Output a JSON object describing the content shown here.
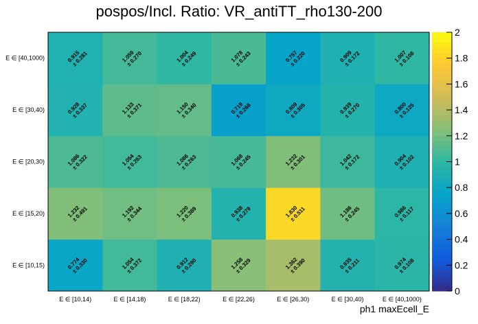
{
  "chart_data": {
    "type": "heatmap",
    "title": "pospos/Incl. Ratio: VR_antiTT_rho130-200",
    "xlabel": "ph1 maxEcell_E",
    "ylabel": "",
    "x_categories": [
      "E ∈ [10,14)",
      "E ∈ [14,18)",
      "E ∈ [18,22)",
      "E ∈ [22,26)",
      "E ∈ [26,30)",
      "E ∈ [30,40)",
      "E ∈ [40,1000)"
    ],
    "y_categories": [
      "E ∈ [10,15)",
      "E ∈ [15,20)",
      "E ∈ [20,30)",
      "E ∈ [30,40)",
      "E ∈ [40,1000)"
    ],
    "zlim": [
      0,
      2
    ],
    "z_ticks": [
      "0",
      "0.2",
      "0.4",
      "0.6",
      "0.8",
      "1",
      "1.2",
      "1.4",
      "1.6",
      "1.8",
      "2"
    ],
    "colormap": [
      "#352a87",
      "#0f5cdd",
      "#1481d6",
      "#06a4ca",
      "#2eb7a4",
      "#87bf77",
      "#d1bb59",
      "#fec832",
      "#f9fb0e"
    ],
    "values": [
      [
        0.774,
        1.054,
        0.912,
        1.258,
        1.362,
        0.935,
        0.974
      ],
      [
        1.232,
        1.192,
        1.22,
        0.938,
        1.83,
        1.186,
        0.986
      ],
      [
        1.086,
        1.054,
        1.086,
        1.068,
        1.232,
        1.042,
        0.904
      ],
      [
        0.928,
        1.133,
        1.15,
        0.719,
        0.809,
        0.939,
        0.8
      ],
      [
        0.915,
        1.059,
        1.004,
        1.078,
        0.757,
        0.909,
        1.007
      ]
    ],
    "errors": [
      [
        0.33,
        0.372,
        0.29,
        0.329,
        0.39,
        0.211,
        0.108
      ],
      [
        0.491,
        0.344,
        0.389,
        0.279,
        0.511,
        0.245,
        0.117
      ],
      [
        0.322,
        0.263,
        0.263,
        0.245,
        0.301,
        0.172,
        0.102
      ],
      [
        0.337,
        0.371,
        0.34,
        0.268,
        0.305,
        0.27,
        0.125
      ],
      [
        0.281,
        0.27,
        0.249,
        0.243,
        0.22,
        0.172,
        0.108
      ]
    ],
    "value_labels": [
      [
        "0.774",
        "1.054",
        "0.912",
        "1.258",
        "1.362",
        "0.935",
        "0.974"
      ],
      [
        "1.232",
        "1.192",
        "1.220",
        "0.938",
        "1.830",
        "1.186",
        "0.986"
      ],
      [
        "1.086",
        "1.054",
        "1.086",
        "1.068",
        "1.232",
        "1.042",
        "0.904"
      ],
      [
        "0.928",
        "1.133",
        "1.150",
        "0.719",
        "0.809",
        "0.939",
        "0.800"
      ],
      [
        "0.915",
        "1.059",
        "1.004",
        "1.078",
        "0.757",
        "0.909",
        "1.007"
      ]
    ],
    "error_labels": [
      [
        "± 0.330",
        "± 0.372",
        "± 0.290",
        "± 0.329",
        "± 0.390",
        "± 0.211",
        "± 0.108"
      ],
      [
        "± 0.491",
        "± 0.344",
        "± 0.389",
        "± 0.279",
        "± 0.511",
        "± 0.245",
        "± 0.117"
      ],
      [
        "± 0.322",
        "± 0.263",
        "± 0.263",
        "± 0.245",
        "± 0.301",
        "± 0.172",
        "± 0.102"
      ],
      [
        "± 0.337",
        "± 0.371",
        "± 0.340",
        "± 0.268",
        "± 0.305",
        "± 0.270",
        "± 0.125"
      ],
      [
        "± 0.281",
        "± 0.270",
        "± 0.249",
        "± 0.243",
        "± 0.220",
        "± 0.172",
        "± 0.108"
      ]
    ]
  }
}
